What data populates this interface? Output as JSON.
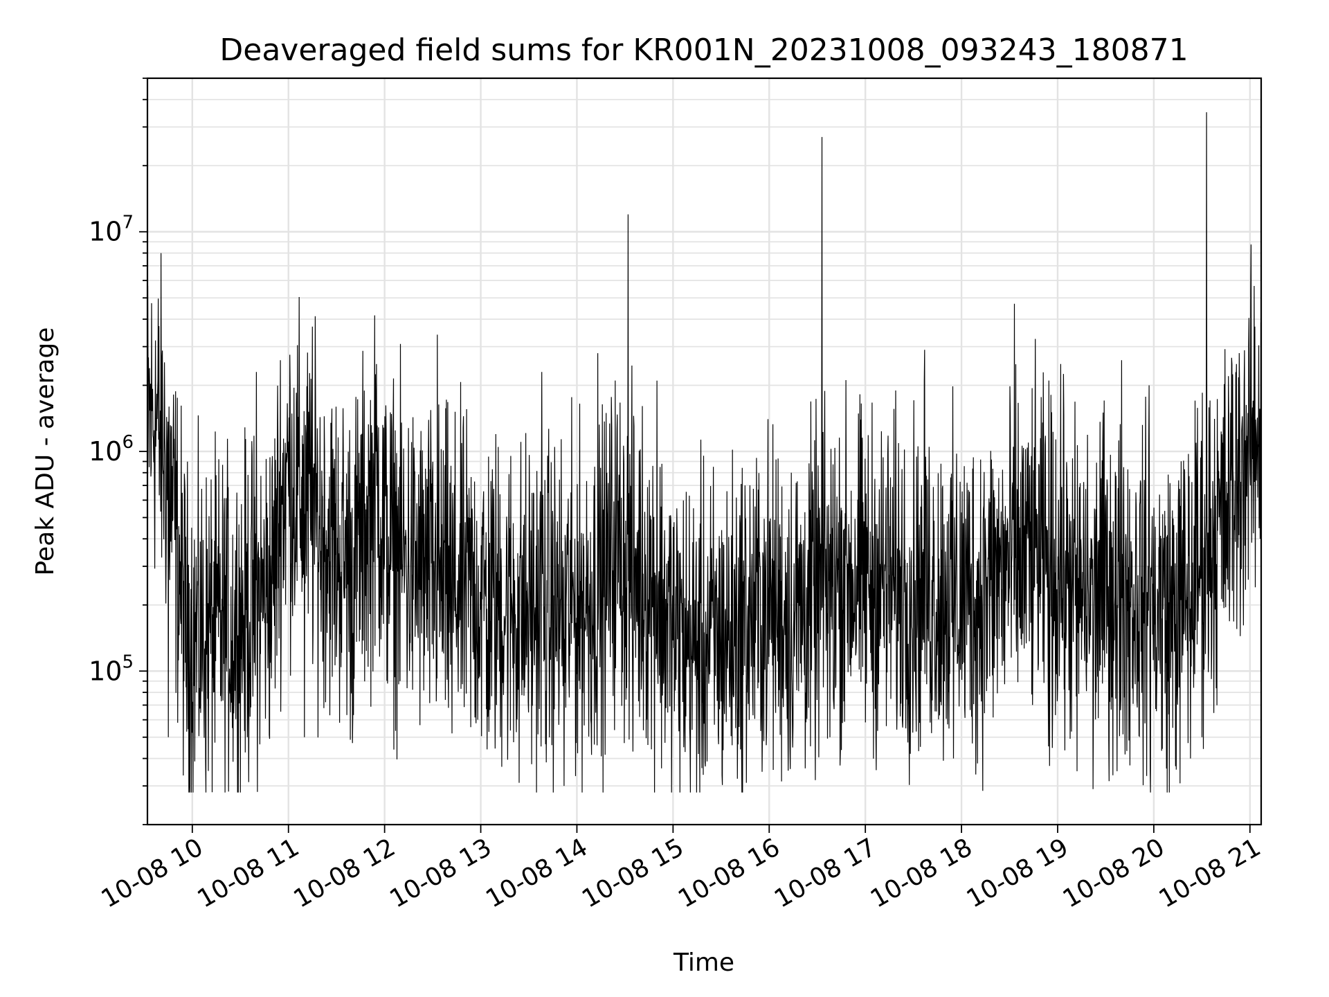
{
  "chart_data": {
    "type": "line",
    "title": "Deaveraged field sums for KR001N_20231008_093243_180871",
    "xlabel": "Time",
    "ylabel": "Peak ADU - average",
    "x_range": [
      "2023-10-08 09:32",
      "2023-10-08 21:07"
    ],
    "ylim": [
      20000,
      50000000
    ],
    "y_scale": "log",
    "grid": true,
    "line_color": "#000000",
    "x_ticks": [
      {
        "time": "2023-10-08 10:00",
        "label": "10-08 10"
      },
      {
        "time": "2023-10-08 11:00",
        "label": "10-08 11"
      },
      {
        "time": "2023-10-08 12:00",
        "label": "10-08 12"
      },
      {
        "time": "2023-10-08 13:00",
        "label": "10-08 13"
      },
      {
        "time": "2023-10-08 14:00",
        "label": "10-08 14"
      },
      {
        "time": "2023-10-08 15:00",
        "label": "10-08 15"
      },
      {
        "time": "2023-10-08 16:00",
        "label": "10-08 16"
      },
      {
        "time": "2023-10-08 17:00",
        "label": "10-08 17"
      },
      {
        "time": "2023-10-08 18:00",
        "label": "10-08 18"
      },
      {
        "time": "2023-10-08 19:00",
        "label": "10-08 19"
      },
      {
        "time": "2023-10-08 20:00",
        "label": "10-08 20"
      },
      {
        "time": "2023-10-08 21:00",
        "label": "10-08 21"
      }
    ],
    "y_ticks": [
      {
        "value": 100000,
        "base": "10",
        "exp": "5"
      },
      {
        "value": 1000000,
        "base": "10",
        "exp": "6"
      },
      {
        "value": 10000000,
        "base": "10",
        "exp": "7"
      }
    ],
    "series": [
      {
        "points": [
          [
            "2023-10-08 09:32",
            1300000
          ],
          [
            "2023-10-08 09:36",
            1500000
          ],
          [
            "2023-10-08 09:40",
            1200000
          ],
          [
            "2023-10-08 09:44",
            900000
          ],
          [
            "2023-10-08 09:47",
            600000
          ],
          [
            "2023-10-08 09:50",
            400000
          ],
          [
            "2023-10-08 09:53",
            250000
          ],
          [
            "2023-10-08 09:56",
            150000
          ],
          [
            "2023-10-08 10:00",
            140000
          ],
          [
            "2023-10-08 10:10",
            150000
          ],
          [
            "2023-10-08 10:20",
            160000
          ],
          [
            "2023-10-08 10:30",
            170000
          ],
          [
            "2023-10-08 10:40",
            200000
          ],
          [
            "2023-10-08 10:50",
            250000
          ],
          [
            "2023-10-08 10:55",
            600000
          ],
          [
            "2023-10-08 11:00",
            800000
          ],
          [
            "2023-10-08 11:10",
            600000
          ],
          [
            "2023-10-08 11:20",
            450000
          ],
          [
            "2023-10-08 11:30",
            350000
          ],
          [
            "2023-10-08 11:40",
            300000
          ],
          [
            "2023-10-08 11:50",
            500000
          ],
          [
            "2023-10-08 11:55",
            700000
          ],
          [
            "2023-10-08 12:00",
            400000
          ],
          [
            "2023-10-08 12:15",
            300000
          ],
          [
            "2023-10-08 12:30",
            260000
          ],
          [
            "2023-10-08 12:45",
            240000
          ],
          [
            "2023-10-08 13:00",
            220000
          ],
          [
            "2023-10-08 13:15",
            200000
          ],
          [
            "2023-10-08 13:30",
            190000
          ],
          [
            "2023-10-08 13:45",
            190000
          ],
          [
            "2023-10-08 14:00",
            200000
          ],
          [
            "2023-10-08 14:15",
            230000
          ],
          [
            "2023-10-08 14:25",
            400000
          ],
          [
            "2023-10-08 14:30",
            300000
          ],
          [
            "2023-10-08 14:45",
            260000
          ],
          [
            "2023-10-08 15:00",
            150000
          ],
          [
            "2023-10-08 15:15",
            130000
          ],
          [
            "2023-10-08 15:30",
            140000
          ],
          [
            "2023-10-08 15:45",
            170000
          ],
          [
            "2023-10-08 16:00",
            200000
          ],
          [
            "2023-10-08 16:15",
            180000
          ],
          [
            "2023-10-08 16:30",
            220000
          ],
          [
            "2023-10-08 16:45",
            280000
          ],
          [
            "2023-10-08 17:00",
            260000
          ],
          [
            "2023-10-08 17:15",
            250000
          ],
          [
            "2023-10-08 17:30",
            240000
          ],
          [
            "2023-10-08 17:45",
            230000
          ],
          [
            "2023-10-08 18:00",
            220000
          ],
          [
            "2023-10-08 18:15",
            240000
          ],
          [
            "2023-10-08 18:30",
            300000
          ],
          [
            "2023-10-08 18:45",
            350000
          ],
          [
            "2023-10-08 19:00",
            280000
          ],
          [
            "2023-10-08 19:15",
            220000
          ],
          [
            "2023-10-08 19:30",
            250000
          ],
          [
            "2023-10-08 19:45",
            230000
          ],
          [
            "2023-10-08 20:00",
            200000
          ],
          [
            "2023-10-08 20:15",
            180000
          ],
          [
            "2023-10-08 20:30",
            350000
          ],
          [
            "2023-10-08 20:45",
            500000
          ],
          [
            "2023-10-08 20:55",
            900000
          ],
          [
            "2023-10-08 21:07",
            1300000
          ]
        ]
      }
    ],
    "spikes": [
      [
        "2023-10-08 09:37",
        3200000
      ],
      [
        "2023-10-08 10:40",
        2300000
      ],
      [
        "2023-10-08 10:55",
        2600000
      ],
      [
        "2023-10-08 11:15",
        3700000
      ],
      [
        "2023-10-08 11:55",
        2500000
      ],
      [
        "2023-10-08 12:33",
        3400000
      ],
      [
        "2023-10-08 13:38",
        2300000
      ],
      [
        "2023-10-08 14:13",
        2800000
      ],
      [
        "2023-10-08 14:32",
        12000000
      ],
      [
        "2023-10-08 14:50",
        2100000
      ],
      [
        "2023-10-08 15:45",
        700000
      ],
      [
        "2023-10-08 16:33",
        27000000
      ],
      [
        "2023-10-08 17:37",
        2900000
      ],
      [
        "2023-10-08 18:33",
        4700000
      ],
      [
        "2023-10-08 19:02",
        2500000
      ],
      [
        "2023-10-08 19:40",
        2600000
      ],
      [
        "2023-10-08 19:57",
        2000000
      ],
      [
        "2023-10-08 20:33",
        35000000
      ],
      [
        "2023-10-08 21:03",
        3700000
      ]
    ],
    "dips": [
      [
        "2023-10-08 09:45",
        50000
      ],
      [
        "2023-10-08 10:25",
        55000
      ],
      [
        "2023-10-08 11:10",
        50000
      ],
      [
        "2023-10-08 11:40",
        47000
      ],
      [
        "2023-10-08 12:42",
        52000
      ],
      [
        "2023-10-08 13:04",
        44000
      ],
      [
        "2023-10-08 13:24",
        31000
      ],
      [
        "2023-10-08 13:52",
        30000
      ],
      [
        "2023-10-08 14:35",
        43000
      ],
      [
        "2023-10-08 15:12",
        54000
      ],
      [
        "2023-10-08 15:42",
        44000
      ],
      [
        "2023-10-08 16:13",
        45000
      ],
      [
        "2023-10-08 16:38",
        50000
      ],
      [
        "2023-10-08 17:28",
        42000
      ],
      [
        "2023-10-08 17:55",
        40000
      ],
      [
        "2023-10-08 18:10",
        38000
      ],
      [
        "2023-10-08 18:55",
        37000
      ],
      [
        "2023-10-08 19:12",
        35000
      ],
      [
        "2023-10-08 19:22",
        29000
      ],
      [
        "2023-10-08 19:37",
        35000
      ],
      [
        "2023-10-08 19:58",
        28000
      ],
      [
        "2023-10-08 20:08",
        36000
      ],
      [
        "2023-10-08 20:23",
        40000
      ],
      [
        "2023-10-08 20:30",
        50000
      ]
    ]
  }
}
